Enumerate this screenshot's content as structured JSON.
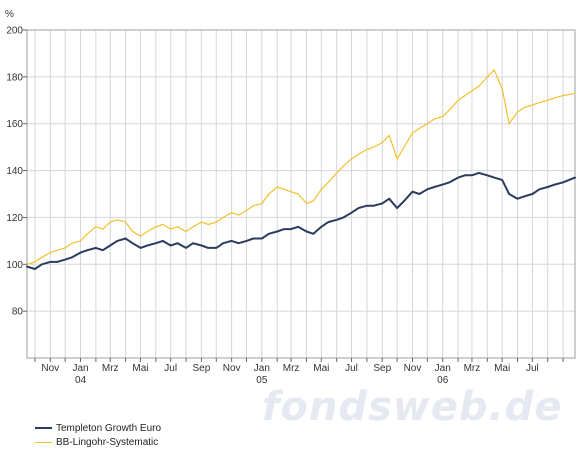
{
  "watermark": "fondsweb.de",
  "legend": [
    {
      "label": "Templeton Growth Euro",
      "color": "#2b3c5e"
    },
    {
      "label": "BB-Lingohr-Systematic",
      "color": "#f2c12e"
    }
  ],
  "chart_data": {
    "type": "line",
    "ylabel": "%",
    "ylim": [
      60,
      200
    ],
    "yticks": [
      80,
      100,
      120,
      140,
      160,
      180,
      200
    ],
    "grid": true,
    "legend_position": "bottom-left",
    "x_range_months": [
      "2003-09-15",
      "2006-09-25"
    ],
    "x_months": [
      "2003-10",
      "2003-11",
      "2003-12",
      "2004-01",
      "2004-02",
      "2004-03",
      "2004-04",
      "2004-05",
      "2004-06",
      "2004-07",
      "2004-08",
      "2004-09",
      "2004-10",
      "2004-11",
      "2004-12",
      "2005-01",
      "2005-02",
      "2005-03",
      "2005-04",
      "2005-05",
      "2005-06",
      "2005-07",
      "2005-08",
      "2005-09",
      "2005-10",
      "2005-11",
      "2005-12",
      "2006-01",
      "2006-02",
      "2006-03",
      "2006-04",
      "2006-05",
      "2006-06",
      "2006-07",
      "2006-08",
      "2006-09"
    ],
    "x_tick_labels": [
      {
        "month": "2003-11",
        "label": "Nov",
        "year": ""
      },
      {
        "month": "2004-01",
        "label": "Jan",
        "year": "04"
      },
      {
        "month": "2004-03",
        "label": "Mrz",
        "year": ""
      },
      {
        "month": "2004-05",
        "label": "Mai",
        "year": ""
      },
      {
        "month": "2004-07",
        "label": "Jul",
        "year": ""
      },
      {
        "month": "2004-09",
        "label": "Sep",
        "year": ""
      },
      {
        "month": "2004-11",
        "label": "Nov",
        "year": ""
      },
      {
        "month": "2005-01",
        "label": "Jan",
        "year": "05"
      },
      {
        "month": "2005-03",
        "label": "Mrz",
        "year": ""
      },
      {
        "month": "2005-05",
        "label": "Mai",
        "year": ""
      },
      {
        "month": "2005-07",
        "label": "Jul",
        "year": ""
      },
      {
        "month": "2005-09",
        "label": "Sep",
        "year": ""
      },
      {
        "month": "2005-11",
        "label": "Nov",
        "year": ""
      },
      {
        "month": "2006-01",
        "label": "Jan",
        "year": "06"
      },
      {
        "month": "2006-03",
        "label": "Mrz",
        "year": ""
      },
      {
        "month": "2006-05",
        "label": "Mai",
        "year": ""
      },
      {
        "month": "2006-07",
        "label": "Jul",
        "year": ""
      }
    ],
    "series": [
      {
        "name": "Templeton Growth Euro",
        "color": "#2b3c5e",
        "x": [
          "2003-09-15",
          "2003-10-01",
          "2003-10-15",
          "2003-11-01",
          "2003-11-15",
          "2003-12-01",
          "2003-12-15",
          "2004-01-01",
          "2004-01-15",
          "2004-02-01",
          "2004-02-15",
          "2004-03-01",
          "2004-03-15",
          "2004-04-01",
          "2004-04-15",
          "2004-05-01",
          "2004-05-15",
          "2004-06-01",
          "2004-06-15",
          "2004-07-01",
          "2004-07-15",
          "2004-08-01",
          "2004-08-15",
          "2004-09-01",
          "2004-09-15",
          "2004-10-01",
          "2004-10-15",
          "2004-11-01",
          "2004-11-15",
          "2004-12-01",
          "2004-12-15",
          "2005-01-01",
          "2005-01-15",
          "2005-02-01",
          "2005-02-15",
          "2005-03-01",
          "2005-03-15",
          "2005-04-01",
          "2005-04-15",
          "2005-05-01",
          "2005-05-15",
          "2005-06-01",
          "2005-06-15",
          "2005-07-01",
          "2005-07-15",
          "2005-08-01",
          "2005-08-15",
          "2005-09-01",
          "2005-09-15",
          "2005-10-01",
          "2005-10-15",
          "2005-11-01",
          "2005-11-15",
          "2005-12-01",
          "2005-12-15",
          "2006-01-01",
          "2006-01-15",
          "2006-02-01",
          "2006-02-15",
          "2006-03-01",
          "2006-03-15",
          "2006-04-01",
          "2006-04-15",
          "2006-05-01",
          "2006-05-15",
          "2006-06-01",
          "2006-06-15",
          "2006-07-01",
          "2006-07-15",
          "2006-08-01",
          "2006-08-15",
          "2006-09-01",
          "2006-09-25"
        ],
        "values": [
          99,
          98,
          100,
          101,
          101,
          102,
          103,
          105,
          106,
          107,
          106,
          108,
          110,
          111,
          109,
          107,
          108,
          109,
          110,
          108,
          109,
          107,
          109,
          108,
          107,
          107,
          109,
          110,
          109,
          110,
          111,
          111,
          113,
          114,
          115,
          115,
          116,
          114,
          113,
          116,
          118,
          119,
          120,
          122,
          124,
          125,
          125,
          126,
          128,
          124,
          127,
          131,
          130,
          132,
          133,
          134,
          135,
          137,
          138,
          138,
          139,
          138,
          137,
          136,
          130,
          128,
          129,
          130,
          132,
          133,
          134,
          135,
          137
        ]
      },
      {
        "name": "BB-Lingohr-Systematic",
        "color": "#f2c12e",
        "x": [
          "2003-09-15",
          "2003-10-01",
          "2003-10-15",
          "2003-11-01",
          "2003-11-15",
          "2003-12-01",
          "2003-12-15",
          "2004-01-01",
          "2004-01-15",
          "2004-02-01",
          "2004-02-15",
          "2004-03-01",
          "2004-03-15",
          "2004-04-01",
          "2004-04-15",
          "2004-05-01",
          "2004-05-15",
          "2004-06-01",
          "2004-06-15",
          "2004-07-01",
          "2004-07-15",
          "2004-08-01",
          "2004-08-15",
          "2004-09-01",
          "2004-09-15",
          "2004-10-01",
          "2004-10-15",
          "2004-11-01",
          "2004-11-15",
          "2004-12-01",
          "2004-12-15",
          "2005-01-01",
          "2005-01-15",
          "2005-02-01",
          "2005-02-15",
          "2005-03-01",
          "2005-03-15",
          "2005-04-01",
          "2005-04-15",
          "2005-05-01",
          "2005-05-15",
          "2005-06-01",
          "2005-06-15",
          "2005-07-01",
          "2005-07-15",
          "2005-08-01",
          "2005-08-15",
          "2005-09-01",
          "2005-09-15",
          "2005-10-01",
          "2005-10-15",
          "2005-11-01",
          "2005-11-15",
          "2005-12-01",
          "2005-12-15",
          "2006-01-01",
          "2006-01-15",
          "2006-02-01",
          "2006-02-15",
          "2006-03-01",
          "2006-03-15",
          "2006-04-01",
          "2006-04-15",
          "2006-05-01",
          "2006-05-15",
          "2006-06-01",
          "2006-06-15",
          "2006-07-01",
          "2006-07-15",
          "2006-08-01",
          "2006-08-15",
          "2006-09-01",
          "2006-09-25"
        ],
        "values": [
          100,
          101,
          103,
          105,
          106,
          107,
          109,
          110,
          113,
          116,
          115,
          118,
          119,
          118,
          114,
          112,
          114,
          116,
          117,
          115,
          116,
          114,
          116,
          118,
          117,
          118,
          120,
          122,
          121,
          123,
          125,
          126,
          130,
          133,
          132,
          131,
          130,
          126,
          127,
          132,
          135,
          139,
          142,
          145,
          147,
          149,
          150,
          152,
          155,
          145,
          150,
          156,
          158,
          160,
          162,
          163,
          166,
          170,
          172,
          174,
          176,
          180,
          183,
          175,
          160,
          165,
          167,
          168,
          169,
          170,
          171,
          172,
          173
        ]
      }
    ]
  }
}
